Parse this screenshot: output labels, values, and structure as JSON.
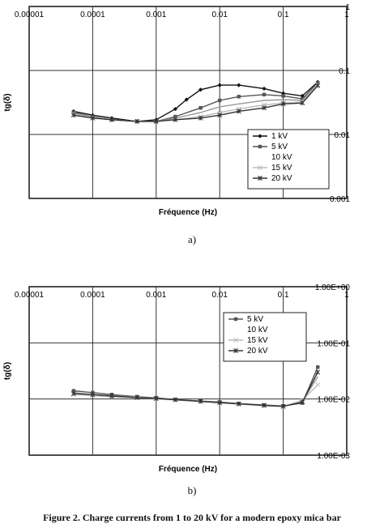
{
  "figure": {
    "caption": "Figure 2. Charge currents from 1 to 20 kV for a modern epoxy mica bar"
  },
  "chart_data": [
    {
      "type": "line",
      "panel_label": "a)",
      "xlabel": "Fréquence (Hz)",
      "ylabel": "tg(δ)",
      "xscale": "log",
      "yscale": "log",
      "xlim": [
        1e-05,
        1
      ],
      "ylim": [
        0.001,
        1
      ],
      "x_ticks": [
        "0.00001",
        "0.0001",
        "0.001",
        "0.01",
        "0.1",
        "1"
      ],
      "y_ticks": [
        "1",
        "0.1",
        "0.01",
        "0.001"
      ],
      "grid": true,
      "legend_position": "center-right",
      "colors": {
        "1 kV": "#111111",
        "5 kV": "#555555",
        "10 kV": "#999999",
        "15 kV": "#bbbbbb",
        "20 kV": "#333333"
      },
      "series": [
        {
          "name": "1 kV",
          "marker": "diamond",
          "x": [
            5e-05,
            0.0001,
            0.0002,
            0.0005,
            0.001,
            0.002,
            0.003,
            0.005,
            0.01,
            0.02,
            0.05,
            0.1,
            0.2,
            0.35
          ],
          "y": [
            0.023,
            0.02,
            0.018,
            0.016,
            0.017,
            0.025,
            0.035,
            0.05,
            0.059,
            0.059,
            0.052,
            0.044,
            0.04,
            0.066
          ]
        },
        {
          "name": "5 kV",
          "marker": "square",
          "x": [
            5e-05,
            0.0001,
            0.0002,
            0.0005,
            0.001,
            0.002,
            0.005,
            0.01,
            0.02,
            0.05,
            0.1,
            0.2,
            0.35
          ],
          "y": [
            0.022,
            0.019,
            0.017,
            0.016,
            0.016,
            0.019,
            0.026,
            0.034,
            0.039,
            0.042,
            0.04,
            0.036,
            0.064
          ]
        },
        {
          "name": "10 kV",
          "marker": "none",
          "x": [
            5e-05,
            0.0001,
            0.0002,
            0.0005,
            0.001,
            0.002,
            0.005,
            0.01,
            0.02,
            0.05,
            0.1,
            0.2,
            0.35
          ],
          "y": [
            0.021,
            0.019,
            0.017,
            0.016,
            0.016,
            0.018,
            0.022,
            0.027,
            0.03,
            0.034,
            0.035,
            0.034,
            0.062
          ]
        },
        {
          "name": "15 kV",
          "marker": "x",
          "x": [
            5e-05,
            0.0001,
            0.0002,
            0.0005,
            0.001,
            0.002,
            0.005,
            0.01,
            0.02,
            0.05,
            0.1,
            0.2,
            0.35
          ],
          "y": [
            0.021,
            0.018,
            0.017,
            0.016,
            0.016,
            0.017,
            0.019,
            0.022,
            0.025,
            0.029,
            0.031,
            0.032,
            0.06
          ]
        },
        {
          "name": "20 kV",
          "marker": "asterisk",
          "x": [
            5e-05,
            0.0001,
            0.0002,
            0.0005,
            0.001,
            0.002,
            0.005,
            0.01,
            0.02,
            0.05,
            0.1,
            0.2,
            0.35
          ],
          "y": [
            0.02,
            0.018,
            0.017,
            0.016,
            0.016,
            0.017,
            0.018,
            0.02,
            0.023,
            0.026,
            0.03,
            0.031,
            0.058
          ]
        }
      ]
    },
    {
      "type": "line",
      "panel_label": "b)",
      "xlabel": "Fréquence (Hz)",
      "ylabel": "tg(δ)",
      "xscale": "log",
      "yscale": "log",
      "xlim": [
        1e-05,
        1
      ],
      "ylim": [
        0.001,
        1
      ],
      "x_ticks": [
        "0.00001",
        "0.0001",
        "0.001",
        "0.01",
        "0.1",
        "1"
      ],
      "y_ticks": [
        "1.00E+00",
        "1.00E-01",
        "1.00E-02",
        "1.00E-03"
      ],
      "grid": true,
      "legend_position": "center-right",
      "colors": {
        "5 kV": "#555555",
        "10 kV": "#999999",
        "15 kV": "#bbbbbb",
        "20 kV": "#333333"
      },
      "series": [
        {
          "name": "5 kV",
          "marker": "square",
          "x": [
            5e-05,
            0.0001,
            0.0002,
            0.0005,
            0.001,
            0.002,
            0.005,
            0.01,
            0.02,
            0.05,
            0.1,
            0.2,
            0.35
          ],
          "y": [
            0.014,
            0.013,
            0.012,
            0.011,
            0.0105,
            0.0098,
            0.0092,
            0.0088,
            0.0083,
            0.0078,
            0.0075,
            0.0085,
            0.037
          ]
        },
        {
          "name": "10 kV",
          "marker": "none",
          "x": [
            5e-05,
            0.0001,
            0.0002,
            0.0005,
            0.001,
            0.002,
            0.005,
            0.01,
            0.02,
            0.05,
            0.1,
            0.2,
            0.35
          ],
          "y": [
            0.013,
            0.012,
            0.0115,
            0.0108,
            0.0103,
            0.0097,
            0.0091,
            0.0086,
            0.0082,
            0.0077,
            0.0074,
            0.009,
            0.025
          ]
        },
        {
          "name": "15 kV",
          "marker": "x",
          "x": [
            5e-05,
            0.0001,
            0.0002,
            0.0005,
            0.001,
            0.002,
            0.005,
            0.01,
            0.02,
            0.05,
            0.1,
            0.2,
            0.35
          ],
          "y": [
            0.012,
            0.0115,
            0.011,
            0.0105,
            0.0101,
            0.0096,
            0.009,
            0.0085,
            0.0081,
            0.0076,
            0.0073,
            0.0095,
            0.018
          ]
        },
        {
          "name": "20 kV",
          "marker": "asterisk",
          "x": [
            5e-05,
            0.0001,
            0.0002,
            0.0005,
            0.001,
            0.002,
            0.005,
            0.01,
            0.02,
            0.05,
            0.1,
            0.2,
            0.35
          ],
          "y": [
            0.0125,
            0.012,
            0.0113,
            0.0106,
            0.0102,
            0.0097,
            0.0091,
            0.0086,
            0.0082,
            0.0077,
            0.0074,
            0.0088,
            0.03
          ]
        }
      ]
    }
  ]
}
